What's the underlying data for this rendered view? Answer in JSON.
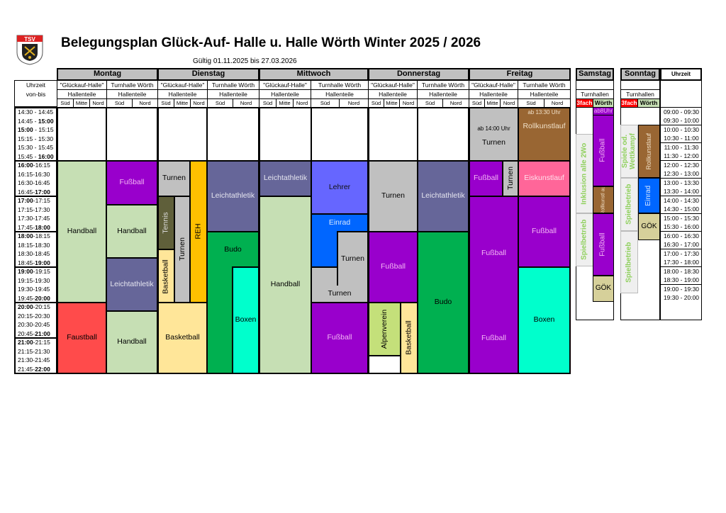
{
  "header": {
    "title": "Belegungsplan Glück-Auf- Halle u. Halle Wörth Winter 2025 / 2026",
    "validity": "Gültig 01.11.2025 bis 27.03.2026",
    "logo_text": "TSV"
  },
  "labels": {
    "uhrzeit": "Uhrzeit",
    "von_bis": "von-bis",
    "gluckauf": "\"Glückauf-Halle\"",
    "turnhalle": "Turnhalle Wörth",
    "hallenteile": "Hallenteile",
    "sued": "Süd",
    "mitte": "Mitte",
    "nord": "Nord",
    "turnhallen": "Turnhallen",
    "dreifach": "3fach",
    "woerth": "Wörth",
    "uhrzeit_right": "Uhrzeit"
  },
  "days": [
    "Montag",
    "Dienstag",
    "Mittwoch",
    "Donnerstag",
    "Freitag",
    "Samstag",
    "Sonntag"
  ],
  "weekday_times": [
    "14:30 - 14:45",
    "14:45 - 15:00",
    "15:00 - 15:15",
    "15:15 - 15:30",
    "15:30 - 15:45",
    "15:45 - 16:00",
    "16:00-16:15",
    "16:15-16:30",
    "16:30-16:45",
    "16:45-17:00",
    "17:00-17:15",
    "17:15-17:30",
    "17:30-17:45",
    "17:45-18:00",
    "18:00-18:15",
    "18:15-18:30",
    "18:30-18:45",
    "18:45-19:00",
    "19:00-19:15",
    "19:15-19:30",
    "19:30-19:45",
    "19:45-20:00",
    "20:00-20:15",
    "20:15-20:30",
    "20:30-20:45",
    "20:45-21:00",
    "21:00-21:15",
    "21:15-21:30",
    "21:30-21:45",
    "21:45-22:00"
  ],
  "weekend_times": [
    "09:00 - 09:30",
    "09:30 - 10:00",
    "10:00 - 10:30",
    "10:30 - 11:00",
    "11:00 - 11:30",
    "11:30 - 12:00",
    "12:00 - 12:30",
    "12:30 - 13:00",
    "13:00 - 13:30",
    "13:30 - 14:00",
    "14:00 - 14:30",
    "14:30 - 15:00",
    "15:00 - 15:30",
    "15:30 - 16:00",
    "16:00 - 16:30",
    "16:30 - 17:00",
    "17:00 - 17:30",
    "17:30 - 18:00",
    "18:00 - 18:30",
    "18:30 - 19:00",
    "19:00 - 19:30",
    "19:30 - 20:00"
  ],
  "activities": {
    "mo_handball_ga": "Handball",
    "mo_fussball_tw": "Fußball",
    "mo_handball_tw": "Handball",
    "mo_leicht_tw": "Leichtathletik",
    "mo_faustball": "Faustball",
    "mo_handball_tw2": "Handball",
    "di_turnen": "Turnen",
    "di_tennis": "Tennis",
    "di_turnen_v": "Turnen",
    "di_reh": "REH",
    "di_basketball_v": "Basketball",
    "di_basketball": "Basketball",
    "di_leicht": "Leichtathletik",
    "di_budo": "Budo",
    "di_boxen": "Boxen",
    "mi_leicht": "Leichtathletik",
    "mi_handball": "Handball",
    "mi_lehrer": "Lehrer",
    "mi_einrad": "Einrad",
    "mi_turnen1": "Turnen",
    "mi_turnen2": "Turnen",
    "mi_fussball": "Fußball",
    "do_turnen": "Turnen",
    "do_fussball": "Fußball",
    "do_alpen": "Alpenverein",
    "do_basketball": "Basketball",
    "do_leicht": "Leichtathletik",
    "do_budo": "Budo",
    "fr_ab14": "ab 14:00 Uhr",
    "fr_turnen": "Turnen",
    "fr_turnen_v": "Turnen",
    "fr_fussball1": "Fußball",
    "fr_fussball2": "Fußball",
    "fr_fussball3": "Fußball",
    "fr_ab1330": "ab 13:30 Uhr",
    "fr_rollkunst": "Rollkunstlauf",
    "fr_eiskunst": "Eiskunstlauf",
    "fr_fussball_tw": "Fußball",
    "fr_boxen": "Boxen",
    "sa_inklusion": "Inklusion alle 2Wo",
    "sa_spielbetrieb": "Spielbetrieb",
    "sa_ab8": "ab8Uhr",
    "sa_fussball1": "Fußball",
    "sa_rollkunst": "Rollkunstl auf",
    "sa_fussball2": "Fußball",
    "sa_goek": "GÖK",
    "so_spiele": "Spiele od. Wettkampf",
    "so_spielbetrieb1": "Spielbetrieb",
    "so_spielbetrieb2": "Spielbetrieb",
    "so_rollkunst": "Rollkunstlauf",
    "so_einrad": "Einrad",
    "so_goek": "GÖK"
  },
  "colors": {
    "handball": "#c6dfb4",
    "fussball": "#9900cc",
    "leichtathletik": "#666699",
    "faustball": "#ff4b4b",
    "turnen": "#c0c0c0",
    "tennis": "#5f5f3a",
    "reh": "#ffc000",
    "basketball": "#ffe699",
    "budo": "#00b050",
    "boxen": "#00ffcc",
    "lehrer": "#6666ff",
    "einrad": "#0066ff",
    "alpenverein": "#c4e07a",
    "rollkunstlauf": "#996633",
    "eiskunstlauf": "#ff6699",
    "goek": "#d6d09a",
    "dreifach": "#ff0000",
    "woerth": "#c6dfb4",
    "header_gray": "#c0c0c0"
  }
}
